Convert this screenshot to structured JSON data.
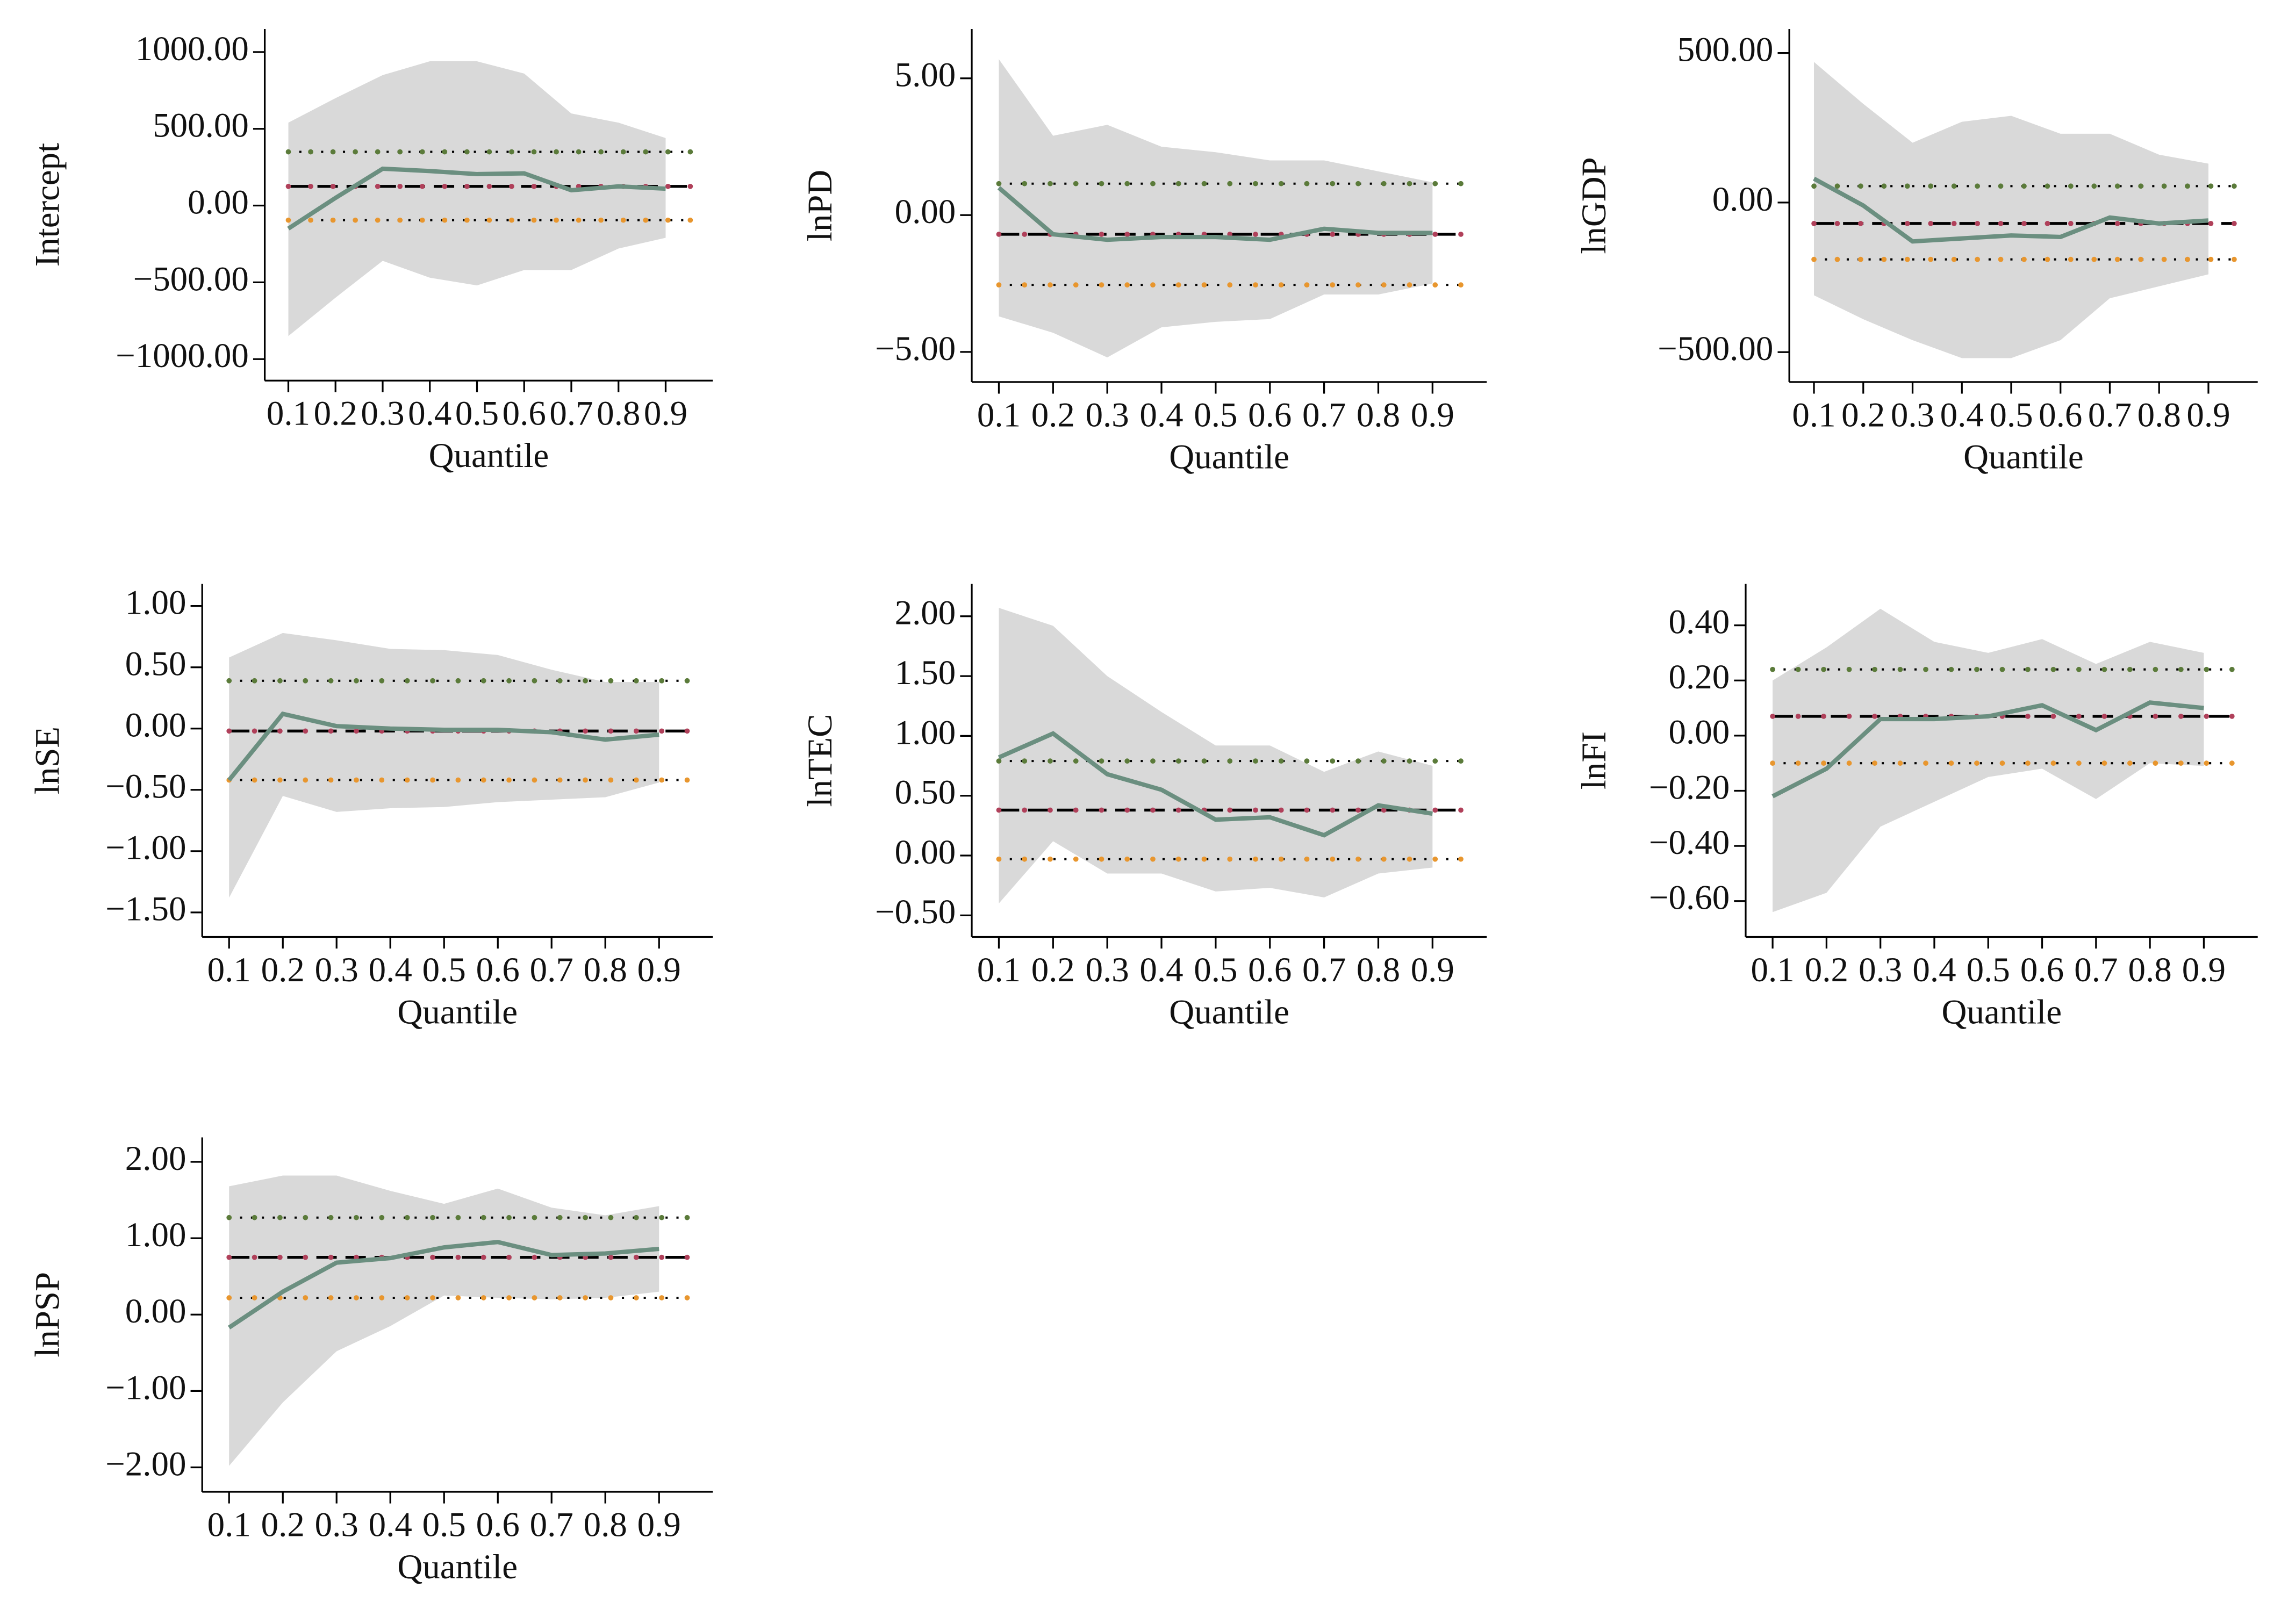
{
  "chart_data": [
    {
      "type": "line",
      "ylabel": "Intercept",
      "xlabel": "Quantile",
      "x": [
        0.1,
        0.2,
        0.3,
        0.4,
        0.5,
        0.6,
        0.7,
        0.8,
        0.9
      ],
      "xlim": [
        0.05,
        1.0
      ],
      "xticks": [
        0.1,
        0.2,
        0.3,
        0.4,
        0.5,
        0.6,
        0.7,
        0.8,
        0.9
      ],
      "ylim": [
        -1140,
        1150
      ],
      "yticks": [
        {
          "value": 1000,
          "label": "1000.00"
        },
        {
          "value": 500,
          "label": "500.00"
        },
        {
          "value": 0,
          "label": "0.00"
        },
        {
          "value": -500,
          "label": "−500.00"
        },
        {
          "value": -1000,
          "label": "−1000.00"
        }
      ],
      "values": [
        -150,
        50,
        240,
        225,
        205,
        210,
        100,
        125,
        110
      ],
      "color": "#6b8f80",
      "band": {
        "upper": [
          540,
          700,
          850,
          940,
          940,
          860,
          600,
          540,
          440
        ],
        "lower": [
          -850,
          -600,
          -360,
          -470,
          -520,
          -420,
          -420,
          -280,
          -210
        ],
        "color": "#d9d9d9"
      },
      "ols": {
        "value": 125,
        "upper": 350,
        "lower": -95,
        "color": "#000000",
        "dot_color": "#b0405a",
        "upper_color": "#5b7b3a",
        "lower_color": "#e8962e"
      }
    },
    {
      "type": "line",
      "ylabel": "lnPD",
      "xlabel": "Quantile",
      "x": [
        0.1,
        0.2,
        0.3,
        0.4,
        0.5,
        0.6,
        0.7,
        0.8,
        0.9
      ],
      "xlim": [
        0.05,
        1.0
      ],
      "xticks": [
        0.1,
        0.2,
        0.3,
        0.4,
        0.5,
        0.6,
        0.7,
        0.8,
        0.9
      ],
      "ylim": [
        -6.1,
        6.8
      ],
      "yticks": [
        {
          "value": 5,
          "label": "5.00"
        },
        {
          "value": 0,
          "label": "0.00"
        },
        {
          "value": -5,
          "label": "−5.00"
        }
      ],
      "values": [
        1.0,
        -0.7,
        -0.9,
        -0.8,
        -0.8,
        -0.9,
        -0.5,
        -0.65,
        -0.65
      ],
      "color": "#6b8f80",
      "band": {
        "upper": [
          5.7,
          2.9,
          3.3,
          2.5,
          2.3,
          2.0,
          2.0,
          1.6,
          1.2
        ],
        "lower": [
          -3.7,
          -4.3,
          -5.2,
          -4.1,
          -3.9,
          -3.8,
          -2.9,
          -2.9,
          -2.5
        ],
        "color": "#d9d9d9"
      },
      "ols": {
        "value": -0.7,
        "upper": 1.15,
        "lower": -2.55,
        "color": "#000000",
        "dot_color": "#b0405a",
        "upper_color": "#5b7b3a",
        "lower_color": "#e8962e"
      }
    },
    {
      "type": "line",
      "ylabel": "lnGDP",
      "xlabel": "Quantile",
      "x": [
        0.1,
        0.2,
        0.3,
        0.4,
        0.5,
        0.6,
        0.7,
        0.8,
        0.9
      ],
      "xlim": [
        0.05,
        1.0
      ],
      "xticks": [
        0.1,
        0.2,
        0.3,
        0.4,
        0.5,
        0.6,
        0.7,
        0.8,
        0.9
      ],
      "ylim": [
        -600,
        580
      ],
      "yticks": [
        {
          "value": 500,
          "label": "500.00"
        },
        {
          "value": 0,
          "label": "0.00"
        },
        {
          "value": -500,
          "label": "−500.00"
        }
      ],
      "values": [
        80,
        -10,
        -130,
        -120,
        -110,
        -115,
        -50,
        -70,
        -60
      ],
      "color": "#6b8f80",
      "band": {
        "upper": [
          470,
          330,
          200,
          270,
          290,
          230,
          230,
          160,
          130
        ],
        "lower": [
          -310,
          -390,
          -460,
          -520,
          -520,
          -460,
          -320,
          -280,
          -240
        ],
        "color": "#d9d9d9"
      },
      "ols": {
        "value": -70,
        "upper": 55,
        "lower": -190,
        "color": "#000000",
        "dot_color": "#b0405a",
        "upper_color": "#5b7b3a",
        "lower_color": "#e8962e"
      }
    },
    {
      "type": "line",
      "ylabel": "lnSE",
      "xlabel": "Quantile",
      "x": [
        0.1,
        0.2,
        0.3,
        0.4,
        0.5,
        0.6,
        0.7,
        0.8,
        0.9
      ],
      "xlim": [
        0.05,
        1.0
      ],
      "xticks": [
        0.1,
        0.2,
        0.3,
        0.4,
        0.5,
        0.6,
        0.7,
        0.8,
        0.9
      ],
      "ylim": [
        -1.7,
        1.18
      ],
      "yticks": [
        {
          "value": 1,
          "label": "1.00"
        },
        {
          "value": 0.5,
          "label": "0.50"
        },
        {
          "value": 0,
          "label": "0.00"
        },
        {
          "value": -0.5,
          "label": "−0.50"
        },
        {
          "value": -1,
          "label": "−1.00"
        },
        {
          "value": -1.5,
          "label": "−1.50"
        }
      ],
      "values": [
        -0.42,
        0.12,
        0.02,
        0.0,
        -0.01,
        -0.01,
        -0.03,
        -0.09,
        -0.05
      ],
      "color": "#6b8f80",
      "band": {
        "upper": [
          0.58,
          0.78,
          0.72,
          0.65,
          0.64,
          0.6,
          0.48,
          0.38,
          0.38
        ],
        "lower": [
          -1.38,
          -0.55,
          -0.68,
          -0.65,
          -0.64,
          -0.6,
          -0.58,
          -0.56,
          -0.44
        ],
        "color": "#d9d9d9"
      },
      "ols": {
        "value": -0.02,
        "upper": 0.39,
        "lower": -0.42,
        "color": "#000000",
        "dot_color": "#b0405a",
        "upper_color": "#5b7b3a",
        "lower_color": "#e8962e"
      }
    },
    {
      "type": "line",
      "ylabel": "lnTEC",
      "xlabel": "Quantile",
      "x": [
        0.1,
        0.2,
        0.3,
        0.4,
        0.5,
        0.6,
        0.7,
        0.8,
        0.9
      ],
      "xlim": [
        0.05,
        1.0
      ],
      "xticks": [
        0.1,
        0.2,
        0.3,
        0.4,
        0.5,
        0.6,
        0.7,
        0.8,
        0.9
      ],
      "ylim": [
        -0.68,
        2.27
      ],
      "yticks": [
        {
          "value": 2,
          "label": "2.00"
        },
        {
          "value": 1.5,
          "label": "1.50"
        },
        {
          "value": 1,
          "label": "1.00"
        },
        {
          "value": 0.5,
          "label": "0.50"
        },
        {
          "value": 0,
          "label": "0.00"
        },
        {
          "value": -0.5,
          "label": "−0.50"
        }
      ],
      "values": [
        0.82,
        1.02,
        0.68,
        0.55,
        0.3,
        0.32,
        0.17,
        0.42,
        0.35
      ],
      "color": "#6b8f80",
      "band": {
        "upper": [
          2.07,
          1.92,
          1.5,
          1.2,
          0.92,
          0.92,
          0.7,
          0.87,
          0.75
        ],
        "lower": [
          -0.4,
          0.12,
          -0.15,
          -0.15,
          -0.3,
          -0.27,
          -0.35,
          -0.15,
          -0.1
        ],
        "color": "#d9d9d9"
      },
      "ols": {
        "value": 0.38,
        "upper": 0.79,
        "lower": -0.03,
        "color": "#000000",
        "dot_color": "#b0405a",
        "upper_color": "#5b7b3a",
        "lower_color": "#e8962e"
      }
    },
    {
      "type": "line",
      "ylabel": "lnFI",
      "xlabel": "Quantile",
      "x": [
        0.1,
        0.2,
        0.3,
        0.4,
        0.5,
        0.6,
        0.7,
        0.8,
        0.9
      ],
      "xlim": [
        0.05,
        1.0
      ],
      "xticks": [
        0.1,
        0.2,
        0.3,
        0.4,
        0.5,
        0.6,
        0.7,
        0.8,
        0.9
      ],
      "ylim": [
        -0.73,
        0.55
      ],
      "yticks": [
        {
          "value": 0.4,
          "label": "0.40"
        },
        {
          "value": 0.2,
          "label": "0.20"
        },
        {
          "value": 0,
          "label": "0.00"
        },
        {
          "value": -0.2,
          "label": "−0.20"
        },
        {
          "value": -0.4,
          "label": "−0.40"
        },
        {
          "value": -0.6,
          "label": "−0.60"
        }
      ],
      "values": [
        -0.22,
        -0.12,
        0.06,
        0.06,
        0.07,
        0.11,
        0.02,
        0.12,
        0.1
      ],
      "color": "#6b8f80",
      "band": {
        "upper": [
          0.2,
          0.32,
          0.46,
          0.34,
          0.3,
          0.35,
          0.26,
          0.34,
          0.3
        ],
        "lower": [
          -0.64,
          -0.57,
          -0.33,
          -0.24,
          -0.15,
          -0.12,
          -0.23,
          -0.1,
          -0.11
        ],
        "color": "#d9d9d9"
      },
      "ols": {
        "value": 0.07,
        "upper": 0.24,
        "lower": -0.1,
        "color": "#000000",
        "dot_color": "#b0405a",
        "upper_color": "#5b7b3a",
        "lower_color": "#e8962e"
      }
    },
    {
      "type": "line",
      "ylabel": "lnPSP",
      "xlabel": "Quantile",
      "x": [
        0.1,
        0.2,
        0.3,
        0.4,
        0.5,
        0.6,
        0.7,
        0.8,
        0.9
      ],
      "xlim": [
        0.05,
        1.0
      ],
      "xticks": [
        0.1,
        0.2,
        0.3,
        0.4,
        0.5,
        0.6,
        0.7,
        0.8,
        0.9
      ],
      "ylim": [
        -2.32,
        2.32
      ],
      "yticks": [
        {
          "value": 2,
          "label": "2.00"
        },
        {
          "value": 1,
          "label": "1.00"
        },
        {
          "value": 0,
          "label": "0.00"
        },
        {
          "value": -1,
          "label": "−1.00"
        },
        {
          "value": -2,
          "label": "−2.00"
        }
      ],
      "values": [
        -0.17,
        0.3,
        0.68,
        0.74,
        0.88,
        0.95,
        0.78,
        0.8,
        0.86
      ],
      "color": "#6b8f80",
      "band": {
        "upper": [
          1.68,
          1.82,
          1.82,
          1.62,
          1.45,
          1.65,
          1.4,
          1.3,
          1.42
        ],
        "lower": [
          -1.98,
          -1.15,
          -0.48,
          -0.15,
          0.25,
          0.22,
          0.2,
          0.22,
          0.3
        ],
        "color": "#d9d9d9"
      },
      "ols": {
        "value": 0.75,
        "upper": 1.27,
        "lower": 0.22,
        "color": "#000000",
        "dot_color": "#b0405a",
        "upper_color": "#5b7b3a",
        "lower_color": "#e8962e"
      }
    }
  ]
}
